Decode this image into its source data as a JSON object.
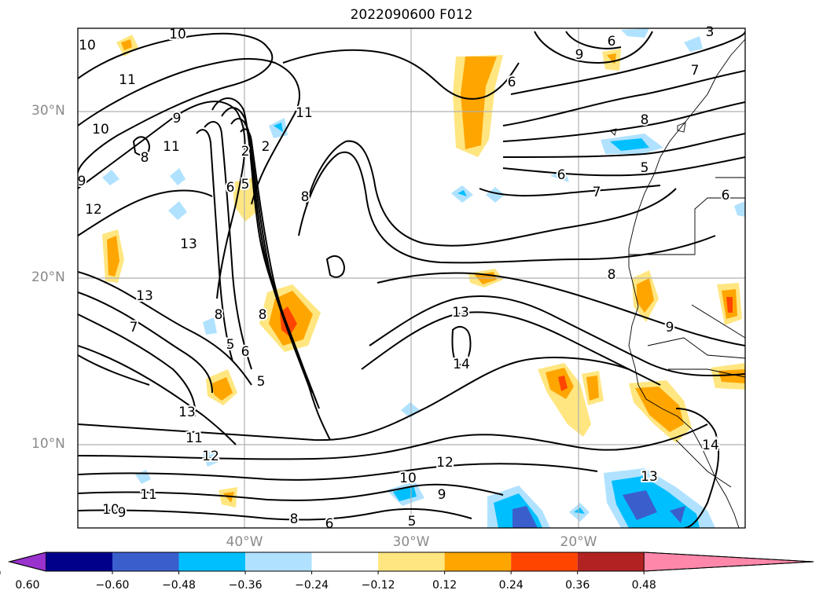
{
  "title": "2022090600 F012",
  "map": {
    "lat_labels": [
      "30°N",
      "20°N",
      "10°N"
    ],
    "lon_labels": [
      "40°W",
      "30°W",
      "20°W"
    ],
    "grid_color": "#b0b0b0",
    "label_color": "#8a8a8a"
  },
  "contour_labels": [
    "10",
    "10",
    "11",
    "10",
    "8",
    "11",
    "11",
    "9",
    "9",
    "9",
    "6",
    "6",
    "7",
    "3",
    "8",
    "12",
    "13",
    "6",
    "5",
    "8",
    "2",
    "2",
    "5",
    "6",
    "7",
    "13",
    "8",
    "13",
    "7",
    "8",
    "5",
    "6",
    "5",
    "8",
    "13",
    "9",
    "14",
    "11",
    "12",
    "12",
    "10",
    "9",
    "11",
    "10",
    "9",
    "5",
    "8",
    "6",
    "6",
    "13",
    "14"
  ],
  "colorbar": {
    "ticks": [
      "−0.60",
      "−0.48",
      "−0.36",
      "−0.24",
      "−0.12",
      "0.12",
      "0.24",
      "0.36",
      "0.48",
      "0.60"
    ],
    "colors": [
      "#9a32cd",
      "#00008b",
      "#3a5fcd",
      "#00bfff",
      "#b0e2ff",
      "#ffffff",
      "#ffe680",
      "#ffa500",
      "#ff4500",
      "#b22222",
      "#ff88aa"
    ],
    "extend": "both"
  },
  "chart_data": {
    "type": "heatmap",
    "title": "2022090600 F012",
    "xlabel": "",
    "ylabel": "",
    "x_ticks": [
      "40°W",
      "30°W",
      "20°W"
    ],
    "y_ticks": [
      "30°N",
      "20°N",
      "10°N"
    ],
    "xlim": [
      -50,
      -10
    ],
    "ylim": [
      5,
      35
    ],
    "grid": true,
    "levels": [
      -0.6,
      -0.48,
      -0.36,
      -0.24,
      -0.12,
      0.12,
      0.24,
      0.36,
      0.48,
      0.6
    ]
  }
}
